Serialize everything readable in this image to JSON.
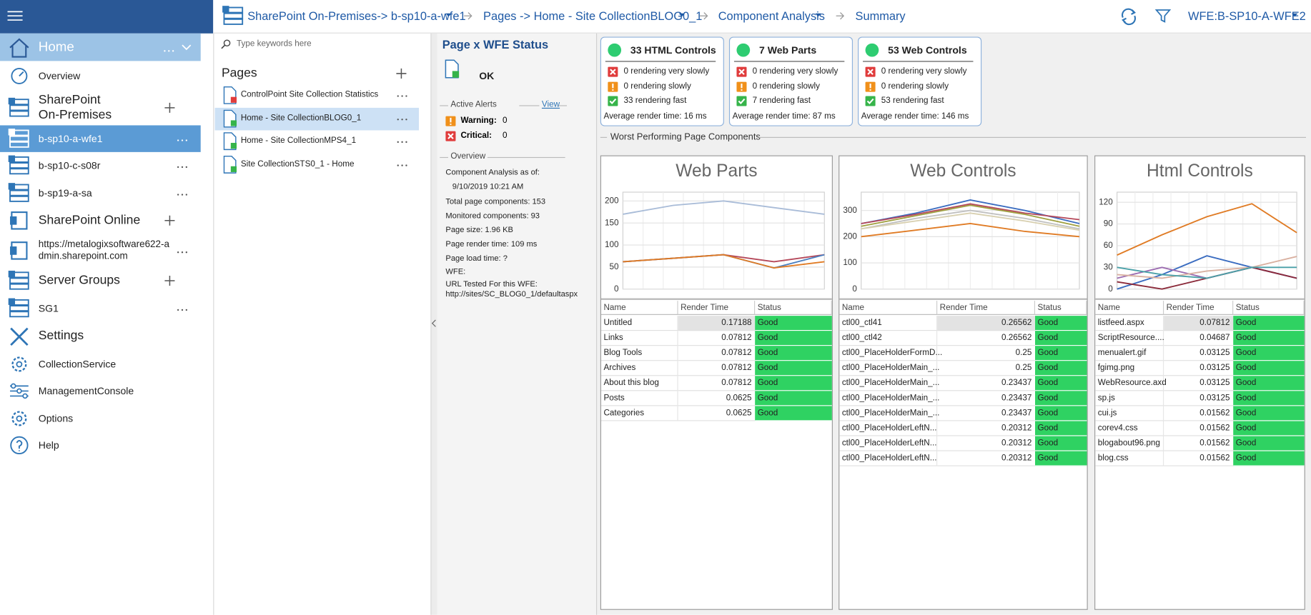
{
  "nav": [
    "Home",
    "Overview",
    "SharePoint On-Premises",
    "b-sp10-a-wfe1",
    "b-sp10-c-s08r",
    "b-sp19-a-sa",
    "SharePoint Online",
    "https://metalogixsoftware622-admin.sharepoint.com",
    "Server Groups",
    "SG1",
    "Settings",
    "CollectionService",
    "ManagementConsole",
    "Options",
    "Help"
  ],
  "breadcrumb": [
    "SharePoint On-Premises-> b-sp10-a-wfe1",
    "Pages -> Home - Site CollectionBLOG0_1",
    "Component Analysis",
    "Summary"
  ],
  "wfe": "WFE:B-SP10-A-WFE2",
  "search_placeholder": "Type keywords here",
  "pages": {
    "title": "Pages",
    "items": [
      "ControlPoint Site Collection Statistics",
      "Home - Site CollectionBLOG0_1",
      "Home - Site CollectionMPS4_1",
      "Site CollectionSTS0_1 - Home"
    ]
  },
  "status": {
    "title": "Page x WFE Status",
    "state": "OK",
    "alerts_title": "Active Alerts",
    "view": "View",
    "warning_label": "Warning:",
    "warning_value": "0",
    "critical_label": "Critical:",
    "critical_value": "0",
    "overview_title": "Overview",
    "overview": [
      "Component Analysis as of:",
      "9/10/2019 10:21 AM",
      "Total page components: 153",
      "Monitored components: 93",
      "Page size: 1.96 KB",
      "Page render time: 109 ms",
      "Page load time: ?",
      "WFE:",
      "URL Tested For this WFE:",
      "http://sites/SC_BLOG0_1/defaultaspx"
    ]
  },
  "cards": [
    {
      "title": "33 HTML Controls",
      "lines": [
        "0 rendering very slowly",
        "0 rendering slowly",
        "33 rendering fast"
      ],
      "average": "Average render time: 16 ms"
    },
    {
      "title": "7 Web Parts",
      "lines": [
        "0 rendering very slowly",
        "0 rendering slowly",
        "7 rendering fast"
      ],
      "average": "Average render time: 87 ms"
    },
    {
      "title": "53 Web Controls",
      "lines": [
        "0 rendering very slowly",
        "0 rendering slowly",
        "53 rendering fast"
      ],
      "average": "Average render time: 146 ms"
    }
  ],
  "worst_title": "Worst Performing Page Components",
  "chart_data": [
    {
      "type": "line",
      "title": "Web Parts",
      "categories": [
        null,
        null,
        null,
        null,
        null
      ],
      "ylim": [
        0,
        220
      ],
      "yticks": [
        0,
        50,
        100,
        150,
        200
      ],
      "grid": true,
      "series": [
        {
          "color": "#a9bcd8",
          "values": [
            170,
            190,
            200,
            185,
            170
          ]
        },
        {
          "color": "#b5485a",
          "values": [
            62,
            70,
            78,
            62,
            78
          ]
        },
        {
          "color": "#4a7fc0",
          "values": [
            62,
            70,
            78,
            48,
            78
          ]
        },
        {
          "color": "#e07b24",
          "values": [
            62,
            70,
            78,
            48,
            62
          ]
        }
      ]
    },
    {
      "type": "line",
      "title": "Web Controls",
      "categories": [
        null,
        null,
        null,
        null,
        null
      ],
      "ylim": [
        0,
        370
      ],
      "yticks": [
        0,
        100,
        200,
        300
      ],
      "grid": true,
      "series": [
        {
          "color": "#3a6cc0",
          "values": [
            250,
            290,
            340,
            300,
            250
          ]
        },
        {
          "color": "#b5485a",
          "values": [
            250,
            285,
            325,
            290,
            265
          ]
        },
        {
          "color": "#a0a040",
          "values": [
            240,
            280,
            320,
            285,
            240
          ]
        },
        {
          "color": "#c0c0c0",
          "values": [
            230,
            270,
            300,
            270,
            230
          ]
        },
        {
          "color": "#d8d0b0",
          "values": [
            230,
            260,
            290,
            260,
            225
          ]
        },
        {
          "color": "#e07b24",
          "values": [
            200,
            225,
            250,
            220,
            200
          ]
        }
      ]
    },
    {
      "type": "line",
      "title": "Html Controls",
      "categories": [
        null,
        null,
        null,
        null,
        null
      ],
      "ylim": [
        0,
        134
      ],
      "yticks": [
        0,
        30,
        60,
        90,
        120
      ],
      "grid": true,
      "series": [
        {
          "color": "#e07b24",
          "values": [
            47,
            75,
            100,
            118,
            78
          ]
        },
        {
          "color": "#3a6cc0",
          "values": [
            0,
            20,
            46,
            30,
            15
          ]
        },
        {
          "color": "#9b6bb0",
          "values": [
            15,
            30,
            15,
            30,
            15
          ]
        },
        {
          "color": "#8b2a3a",
          "values": [
            10,
            0,
            15,
            30,
            15
          ]
        },
        {
          "color": "#d9b0a0",
          "values": [
            20,
            15,
            25,
            30,
            45
          ]
        },
        {
          "color": "#4aa0a8",
          "values": [
            30,
            20,
            15,
            30,
            30
          ]
        }
      ]
    }
  ],
  "tables": [
    {
      "columns": [
        "Name",
        "Render Time",
        "Status"
      ],
      "rows": [
        [
          "Untitled",
          0.17188,
          "Good"
        ],
        [
          "Links",
          0.07812,
          "Good"
        ],
        [
          "Blog Tools",
          0.07812,
          "Good"
        ],
        [
          "Archives",
          0.07812,
          "Good"
        ],
        [
          "About this blog",
          0.07812,
          "Good"
        ],
        [
          "Posts",
          0.0625,
          "Good"
        ],
        [
          "Categories",
          0.0625,
          "Good"
        ]
      ]
    },
    {
      "columns": [
        "Name",
        "Render Time",
        "Status"
      ],
      "rows": [
        [
          "ctl00_ctl41",
          0.26562,
          "Good"
        ],
        [
          "ctl00_ctl42",
          0.26562,
          "Good"
        ],
        [
          "ctl00_PlaceHolderFormD...",
          0.25,
          "Good"
        ],
        [
          "ctl00_PlaceHolderMain_...",
          0.25,
          "Good"
        ],
        [
          "ctl00_PlaceHolderMain_...",
          0.23437,
          "Good"
        ],
        [
          "ctl00_PlaceHolderMain_...",
          0.23437,
          "Good"
        ],
        [
          "ctl00_PlaceHolderMain_...",
          0.23437,
          "Good"
        ],
        [
          "ctl00_PlaceHolderLeftN...",
          0.20312,
          "Good"
        ],
        [
          "ctl00_PlaceHolderLeftN...",
          0.20312,
          "Good"
        ],
        [
          "ctl00_PlaceHolderLeftN...",
          0.20312,
          "Good"
        ]
      ]
    },
    {
      "columns": [
        "Name",
        "Render Time",
        "Status"
      ],
      "rows": [
        [
          "listfeed.aspx",
          0.07812,
          "Good"
        ],
        [
          "ScriptResource....",
          0.04687,
          "Good"
        ],
        [
          "menualert.gif",
          0.03125,
          "Good"
        ],
        [
          "fgimg.png",
          0.03125,
          "Good"
        ],
        [
          "WebResource.axd",
          0.03125,
          "Good"
        ],
        [
          "sp.js",
          0.03125,
          "Good"
        ],
        [
          "cui.js",
          0.01562,
          "Good"
        ],
        [
          "corev4.css",
          0.01562,
          "Good"
        ],
        [
          "blogabout96.png",
          0.01562,
          "Good"
        ],
        [
          "blog.css",
          0.01562,
          "Good"
        ]
      ]
    }
  ]
}
